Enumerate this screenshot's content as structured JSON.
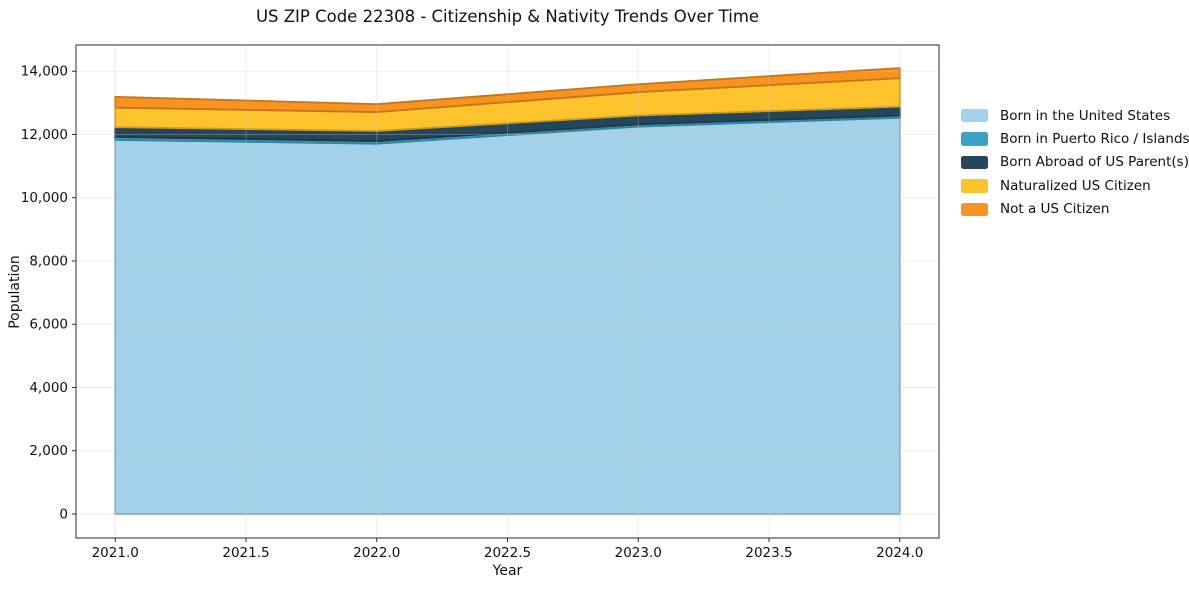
{
  "title": "US ZIP Code 22308 - Citizenship & Nativity Trends Over Time",
  "chart_data": {
    "type": "area",
    "stacked": true,
    "title": "US ZIP Code 22308 - Citizenship & Nativity Trends Over Time",
    "xlabel": "Year",
    "ylabel": "Population",
    "x": [
      2021,
      2022,
      2023,
      2024
    ],
    "series": [
      {
        "name": "Born in the United States",
        "color": "#a2d2ea",
        "values": [
          11830,
          11710,
          12250,
          12530
        ]
      },
      {
        "name": "Born in Puerto Rico / Islands",
        "color": "#3ba4c4",
        "values": [
          90,
          80,
          70,
          70
        ]
      },
      {
        "name": "Born Abroad of US Parent(s)",
        "color": "#25465a",
        "values": [
          310,
          320,
          280,
          280
        ]
      },
      {
        "name": "Naturalized US Citizen",
        "color": "#fcc32d",
        "values": [
          620,
          600,
          740,
          900
        ]
      },
      {
        "name": "Not a US Citizen",
        "color": "#f6941f",
        "values": [
          340,
          250,
          250,
          320
        ]
      }
    ],
    "stack_totals": [
      13190,
      12960,
      13590,
      14100
    ],
    "xlim": [
      2020.85,
      2024.15
    ],
    "ylim": [
      -760,
      14830
    ],
    "xticks": [
      2021.0,
      2021.5,
      2022.0,
      2022.5,
      2023.0,
      2023.5,
      2024.0
    ],
    "xtick_labels": [
      "2021.0",
      "2021.5",
      "2022.0",
      "2022.5",
      "2023.0",
      "2023.5",
      "2024.0"
    ],
    "yticks": [
      0,
      2000,
      4000,
      6000,
      8000,
      10000,
      12000,
      14000
    ],
    "ytick_labels": [
      "0",
      "2,000",
      "4,000",
      "6,000",
      "8,000",
      "10,000",
      "12,000",
      "14,000"
    ],
    "grid": true,
    "grid_above_data": true,
    "legend_position": "right-outside"
  }
}
